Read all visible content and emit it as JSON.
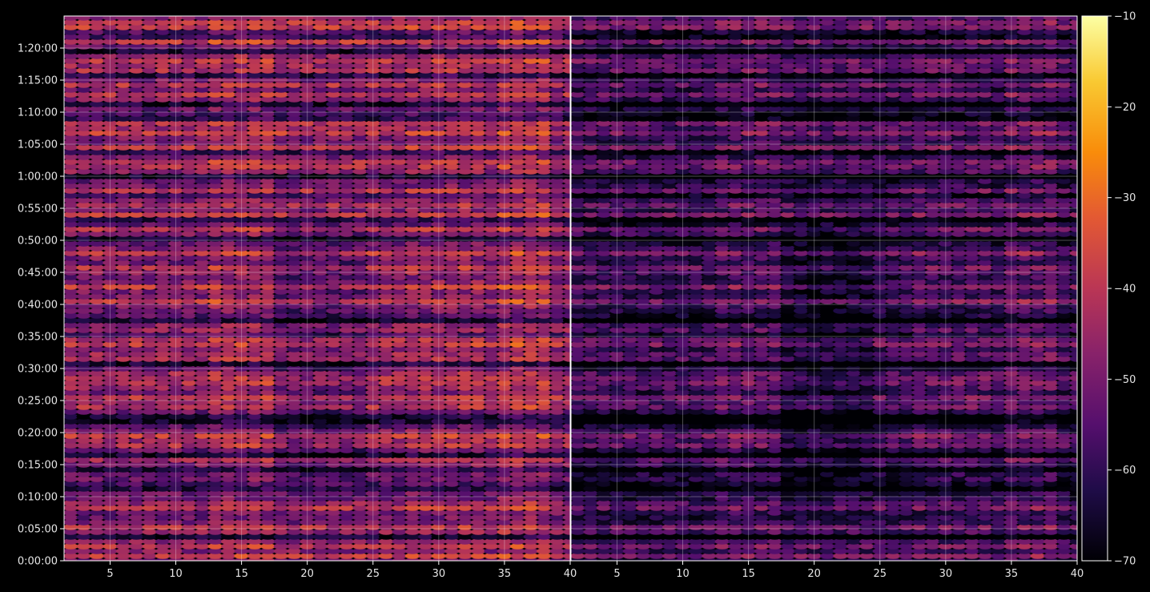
{
  "chart_data": {
    "type": "heatmap",
    "title": "",
    "xlabel": "",
    "ylabel": "",
    "colormap": "inferno",
    "background": "#000000",
    "grid": true,
    "panels": [
      {
        "xlim": [
          1.5,
          40
        ],
        "x_ticks": [
          5,
          10,
          15,
          20,
          25,
          30,
          35,
          40
        ],
        "y_tick_labels": [
          "0:00:00",
          "0:05:00",
          "0:10:00",
          "0:15:00",
          "0:20:00",
          "0:25:00",
          "0:30:00",
          "0:35:00",
          "0:40:00",
          "0:45:00",
          "0:50:00",
          "0:55:00",
          "1:00:00",
          "1:05:00",
          "1:10:00",
          "1:15:00",
          "1:20:00"
        ],
        "ylim_minutes": [
          0,
          85
        ],
        "level_offset": 0
      },
      {
        "xlim": [
          1.5,
          40
        ],
        "x_ticks": [
          5,
          10,
          15,
          20,
          25,
          30,
          35,
          40
        ],
        "y_tick_labels": [],
        "ylim_minutes": [
          0,
          85
        ],
        "level_offset": -11
      }
    ],
    "x_channels": [
      2,
      40
    ],
    "time_rows_minutes": [
      0,
      85
    ],
    "time_row_step_minutes": 0.75,
    "bright_rows_minutes": [
      0.8,
      2.5,
      5.0,
      8.5,
      15.4,
      18.3,
      19.5,
      24.3,
      25.3,
      27.5,
      28.8,
      31.8,
      33.7,
      34.8,
      36.2,
      40.5,
      42.8,
      45.5,
      48.0,
      51.5,
      54.0,
      55.8,
      57.5,
      61.2,
      62.5,
      64.5,
      66.8,
      68.0,
      72.5,
      74.5,
      76.8,
      78.2,
      81.0,
      83.2,
      84.2
    ],
    "dark_rows_minutes": [
      3.7,
      11.5,
      14.5,
      16.5,
      21.6,
      22.4,
      30.8,
      35.5,
      37.6,
      50.4,
      53.1,
      56.8,
      60.1,
      63.5,
      69.3,
      71.4,
      75.5,
      79.6,
      82.1
    ],
    "level_range_db": [
      -72,
      -12
    ],
    "colorbar": {
      "min": -70,
      "max": -10,
      "ticks": [
        -70,
        -60,
        -50,
        -40,
        -30,
        -20,
        -10
      ],
      "tick_labels": [
        "−70",
        "−60",
        "−50",
        "−40",
        "−30",
        "−20",
        "−10"
      ]
    }
  }
}
